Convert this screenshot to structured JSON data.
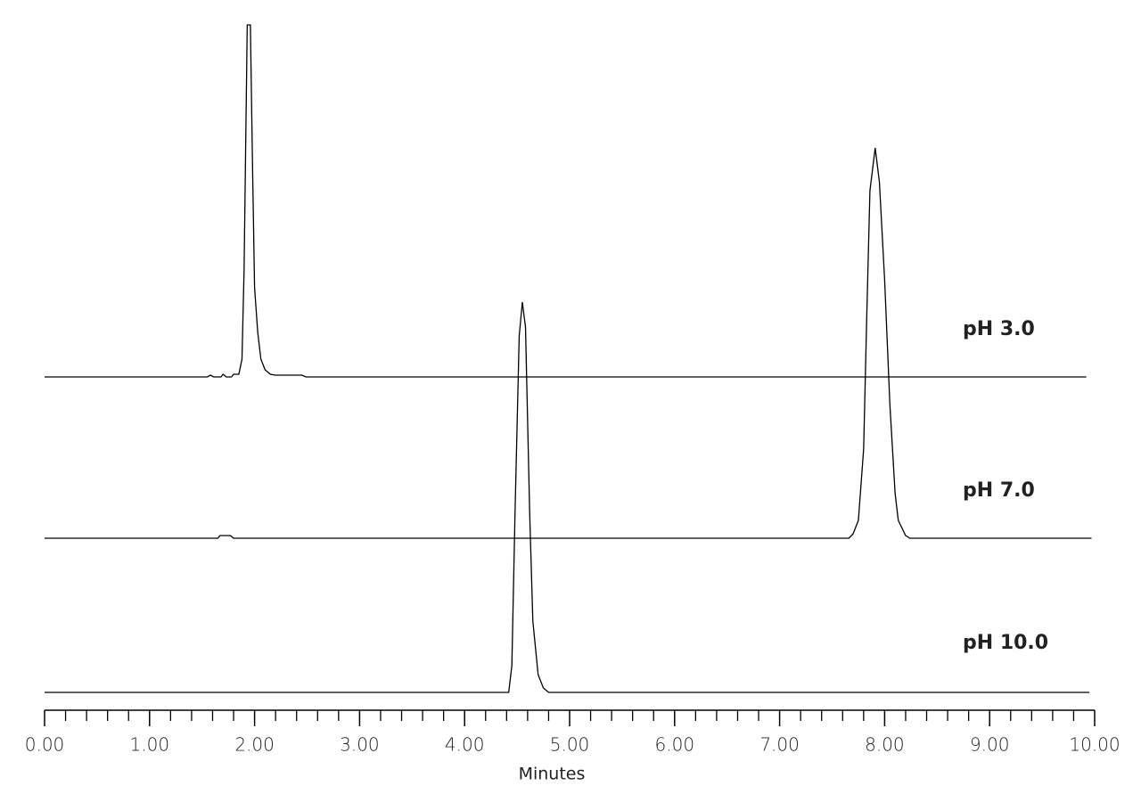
{
  "chart_data": {
    "type": "line",
    "xlabel": "Minutes",
    "xlim": [
      0,
      10
    ],
    "xticks": [
      {
        "value": 0,
        "label": "0.00"
      },
      {
        "value": 1,
        "label": "1.00"
      },
      {
        "value": 2,
        "label": "2.00"
      },
      {
        "value": 3,
        "label": "3.00"
      },
      {
        "value": 4,
        "label": "4.00"
      },
      {
        "value": 5,
        "label": "5.00"
      },
      {
        "value": 6,
        "label": "6.00"
      },
      {
        "value": 7,
        "label": "7.00"
      },
      {
        "value": 8,
        "label": "8.00"
      },
      {
        "value": 9,
        "label": "9.00"
      },
      {
        "value": 10,
        "label": "10.00"
      }
    ],
    "xminor_ticks": [
      0.2,
      0.4,
      0.6,
      0.8,
      1.2,
      1.4,
      1.6,
      1.8,
      2.2,
      2.4,
      2.6,
      2.8,
      3.2,
      3.4,
      3.6,
      3.8,
      4.2,
      4.4,
      4.6,
      4.8,
      5.2,
      5.4,
      5.6,
      5.8,
      6.2,
      6.4,
      6.6,
      6.8,
      7.2,
      7.4,
      7.6,
      7.8,
      8.2,
      8.4,
      8.6,
      8.8,
      9.2,
      9.4,
      9.6,
      9.8
    ],
    "ylim": [
      0,
      450
    ],
    "series": [
      {
        "name": "pH 3.0",
        "color": "#000000",
        "x": [
          0,
          1.55,
          1.58,
          1.61,
          1.68,
          1.7,
          1.73,
          1.78,
          1.8,
          1.85,
          1.88,
          1.9,
          1.93,
          1.96,
          1.98,
          2.0,
          2.03,
          2.06,
          2.1,
          2.15,
          2.2,
          2.45,
          2.49,
          9.92
        ],
        "values": [
          0,
          0,
          2,
          0,
          0,
          3,
          0,
          0,
          3,
          3,
          20,
          120,
          395,
          395,
          240,
          100,
          50,
          20,
          8,
          3,
          2,
          2,
          0,
          0
        ]
      },
      {
        "name": "pH 7.0",
        "color": "#000000",
        "x": [
          0,
          1.65,
          1.67,
          1.77,
          1.8,
          7.66,
          7.7,
          7.75,
          7.8,
          7.83,
          7.86,
          7.91,
          7.95,
          8.0,
          8.05,
          8.1,
          8.13,
          8.2,
          8.24,
          9.97
        ],
        "values": [
          0,
          0,
          3,
          3,
          0,
          0,
          5,
          20,
          100,
          250,
          390,
          438,
          400,
          290,
          150,
          50,
          20,
          3,
          0,
          0
        ]
      },
      {
        "name": "pH 10.0",
        "color": "#000000",
        "x": [
          0,
          4.42,
          4.45,
          4.48,
          4.52,
          4.55,
          4.58,
          4.62,
          4.65,
          4.7,
          4.75,
          4.8,
          9.95
        ],
        "values": [
          0,
          0,
          30,
          200,
          400,
          438,
          410,
          200,
          80,
          20,
          5,
          0,
          0
        ]
      }
    ]
  }
}
